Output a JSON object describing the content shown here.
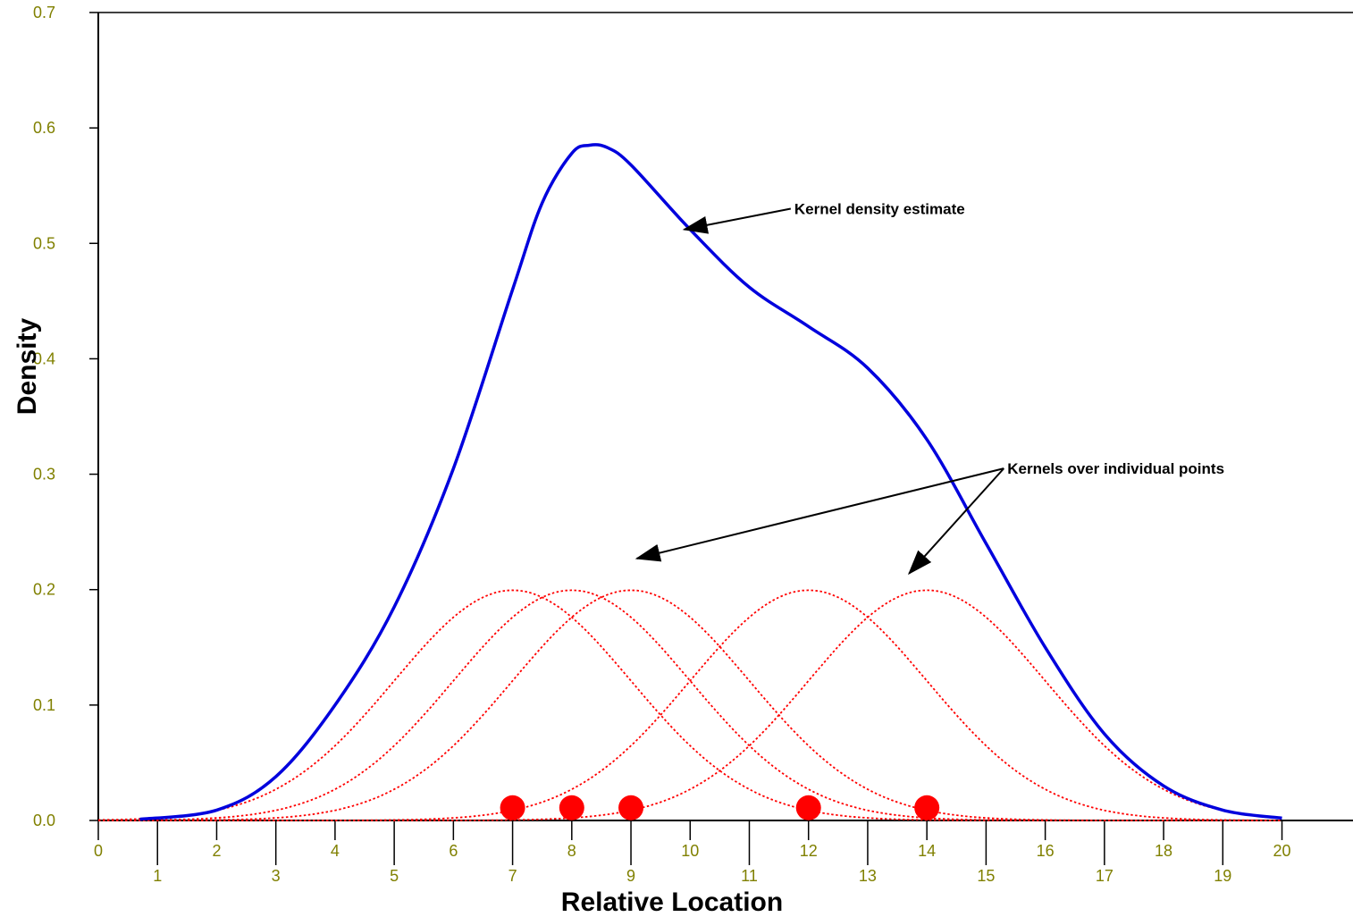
{
  "chart_data": {
    "type": "line",
    "xlabel": "Relative Location",
    "ylabel": "Density",
    "xlim": [
      0,
      21.2
    ],
    "ylim": [
      0,
      0.7
    ],
    "x_ticks": [
      0,
      1,
      2,
      3,
      4,
      5,
      6,
      7,
      8,
      9,
      10,
      11,
      12,
      13,
      14,
      15,
      16,
      17,
      18,
      19,
      20
    ],
    "y_ticks": [
      0.0,
      0.1,
      0.2,
      0.3,
      0.4,
      0.5,
      0.6,
      0.7
    ],
    "y_tick_labels": [
      "0.0",
      "0.1",
      "0.2",
      "0.3",
      "0.4",
      "0.5",
      "0.6",
      "0.7"
    ],
    "grid": false,
    "data_points": [
      7,
      8,
      9,
      12,
      14
    ],
    "kernel_bandwidth": 2.0,
    "kernel_peak": 0.1995,
    "estimate_range": [
      0.7,
      20
    ],
    "series": [
      {
        "role": "estimate",
        "color": "#0000dd",
        "style": "solid",
        "x": [
          0.7,
          2,
          3,
          4,
          5,
          6,
          7,
          7.5,
          8,
          8.3,
          8.6,
          9,
          10,
          11,
          12,
          13,
          14,
          15,
          16,
          17,
          18,
          19,
          20
        ],
        "y": [
          0.001,
          0.009,
          0.038,
          0.1,
          0.185,
          0.305,
          0.46,
          0.535,
          0.578,
          0.585,
          0.583,
          0.568,
          0.512,
          0.462,
          0.428,
          0.392,
          0.33,
          0.24,
          0.15,
          0.075,
          0.03,
          0.009,
          0.002
        ]
      },
      {
        "role": "kernel",
        "center": 7,
        "color": "#ff0000",
        "style": "dotted"
      },
      {
        "role": "kernel",
        "center": 8,
        "color": "#ff0000",
        "style": "dotted"
      },
      {
        "role": "kernel",
        "center": 9,
        "color": "#ff0000",
        "style": "dotted"
      },
      {
        "role": "kernel",
        "center": 12,
        "color": "#ff0000",
        "style": "dotted"
      },
      {
        "role": "kernel",
        "center": 14,
        "color": "#ff0000",
        "style": "dotted"
      }
    ],
    "point_marker_y": 0.011,
    "annotations": [
      {
        "text": "Kernel density estimate",
        "text_at": [
          11.7,
          0.53
        ],
        "arrows_to": [
          [
            9.9,
            0.512
          ]
        ]
      },
      {
        "text": "Kernels over individual points",
        "text_at": [
          15.3,
          0.305
        ],
        "arrows_to": [
          [
            9.1,
            0.227
          ],
          [
            13.7,
            0.214
          ]
        ]
      }
    ]
  }
}
